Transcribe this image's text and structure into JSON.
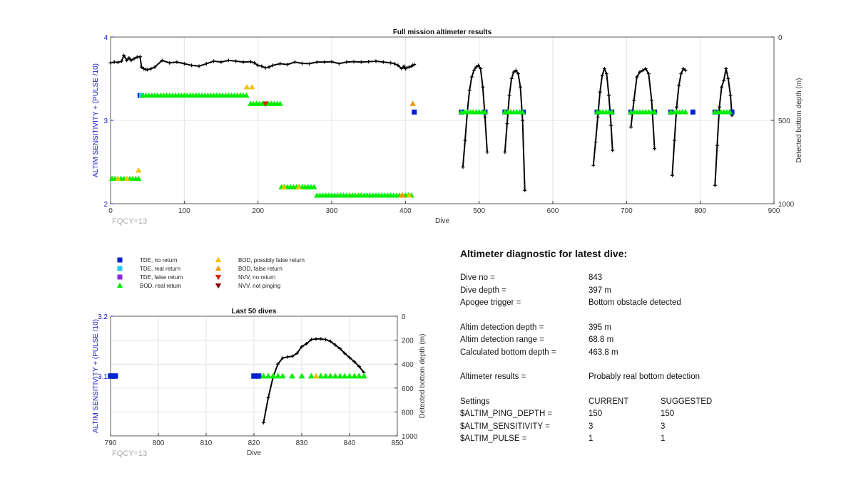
{
  "colors": {
    "axis_left": "#1a1acc",
    "tde_no_return": "#0022cc",
    "tde_real_return": "#22ccee",
    "tde_false_return": "#8a2be2",
    "bod_real_return": "#00ee00",
    "bod_possibly_false": "#f2c200",
    "bod_false_return": "#ee9900",
    "nvv_no_return": "#dd2200",
    "nvv_not_pinging": "#880000",
    "depth_line": "#000000"
  },
  "legend": [
    {
      "label": "TDE, no return",
      "marker": "square",
      "color": "#0022cc"
    },
    {
      "label": "TDE, real return",
      "marker": "square",
      "color": "#22ccee"
    },
    {
      "label": "TDE, false return",
      "marker": "square",
      "color": "#8a2be2"
    },
    {
      "label": "BOD, real return",
      "marker": "triangle-up",
      "color": "#00ee00"
    },
    {
      "label": "BOD, possibly false return",
      "marker": "triangle-up",
      "color": "#f2c200"
    },
    {
      "label": "BOD, false return",
      "marker": "triangle-up",
      "color": "#ee9900"
    },
    {
      "label": "NVV, no return",
      "marker": "triangle-down",
      "color": "#dd2200"
    },
    {
      "label": "NVV, not pinging",
      "marker": "triangle-down",
      "color": "#880000"
    }
  ],
  "chart_data": [
    {
      "type": "scatter",
      "title": "Full mission altimeter results",
      "xlabel": "Dive",
      "ylabel": "ALTIM SENSITIVITY + (PULSE /10)",
      "y2label": "Detected bottom depth (m)",
      "annotation": "FQCY=13",
      "xlim": [
        0,
        900
      ],
      "ylim": [
        2,
        4
      ],
      "y2lim": [
        1000,
        0
      ],
      "x_ticks": [
        0,
        100,
        200,
        300,
        400,
        500,
        600,
        700,
        800,
        900
      ],
      "y_ticks": [
        2,
        3,
        4
      ],
      "y2_ticks": [
        0,
        500,
        1000
      ],
      "grid": true,
      "series": [
        {
          "name": "TDE, no return",
          "color": "#0022cc",
          "marker": "square",
          "points": [
            [
              40,
              3.3
            ],
            [
              412,
              3.1
            ],
            [
              476,
              3.1
            ],
            [
              508,
              3.1
            ],
            [
              535,
              3.1
            ],
            [
              560,
              3.1
            ],
            [
              660,
              3.1
            ],
            [
              680,
              3.1
            ],
            [
              706,
              3.1
            ],
            [
              738,
              3.1
            ],
            [
              760,
              3.1
            ],
            [
              790,
              3.1
            ],
            [
              820,
              3.1
            ],
            [
              843,
              3.1
            ]
          ]
        },
        {
          "name": "TDE, real return",
          "color": "#22ccee",
          "marker": "square",
          "points": [
            [
              42,
              3.3
            ]
          ]
        },
        {
          "name": "BOD, real return",
          "color": "#00ee00",
          "marker": "triangle-up",
          "ranges": [
            [
              2,
              38,
              2.3
            ],
            [
              44,
              185,
              3.3
            ],
            [
              190,
              230,
              3.2
            ],
            [
              232,
              278,
              2.2
            ],
            [
              280,
              410,
              2.1
            ],
            [
              476,
              508,
              3.1
            ],
            [
              535,
              560,
              3.1
            ],
            [
              660,
              680,
              3.1
            ],
            [
              706,
              738,
              3.1
            ],
            [
              760,
              780,
              3.1
            ],
            [
              820,
              843,
              3.1
            ]
          ]
        },
        {
          "name": "BOD, possibly false return",
          "color": "#f2c200",
          "marker": "triangle-up",
          "points": [
            [
              10,
              2.3
            ],
            [
              22,
              2.3
            ],
            [
              38,
              2.4
            ],
            [
              185,
              3.4
            ],
            [
              192,
              3.4
            ],
            [
              235,
              2.2
            ],
            [
              255,
              2.2
            ],
            [
              395,
              2.1
            ],
            [
              405,
              2.1
            ]
          ]
        },
        {
          "name": "BOD, false return",
          "color": "#ee9900",
          "marker": "triangle-up",
          "points": [
            [
              410,
              3.2
            ],
            [
              396,
              2.1
            ]
          ]
        },
        {
          "name": "NVV, no return",
          "color": "#dd2200",
          "marker": "triangle-down",
          "points": [
            [
              210,
              3.2
            ]
          ]
        }
      ],
      "depth_series": [
        {
          "name": "Detected bottom depth",
          "axis": "right",
          "x": [
            0,
            5,
            10,
            15,
            18,
            22,
            25,
            28,
            32,
            36,
            40,
            42,
            45,
            48,
            50,
            55,
            60,
            70,
            80,
            90,
            100,
            110,
            120,
            130,
            140,
            150,
            160,
            170,
            180,
            190,
            195,
            200,
            205,
            210,
            215,
            220,
            230,
            240,
            250,
            260,
            270,
            280,
            290,
            300,
            310,
            320,
            330,
            340,
            350,
            360,
            370,
            380,
            385,
            390,
            395,
            398,
            400,
            402,
            405,
            408,
            410,
            412
          ],
          "y": [
            155,
            150,
            152,
            145,
            110,
            140,
            125,
            140,
            130,
            120,
            118,
            180,
            190,
            195,
            196,
            190,
            180,
            140,
            155,
            150,
            160,
            170,
            175,
            160,
            145,
            150,
            140,
            145,
            150,
            148,
            155,
            170,
            175,
            185,
            180,
            170,
            160,
            165,
            150,
            158,
            160,
            150,
            150,
            148,
            160,
            150,
            148,
            150,
            148,
            145,
            150,
            155,
            160,
            170,
            190,
            175,
            190,
            185,
            180,
            175,
            170,
            165
          ]
        },
        {
          "name": "Dive segment 1",
          "axis": "right",
          "x": [
            478,
            481,
            484,
            487,
            490,
            493,
            496,
            499,
            502,
            505,
            508,
            511
          ],
          "y": [
            780,
            620,
            450,
            320,
            240,
            200,
            180,
            170,
            190,
            300,
            480,
            690
          ]
        },
        {
          "name": "Dive segment 2",
          "axis": "right",
          "x": [
            535,
            538,
            541,
            544,
            547,
            550,
            553,
            556,
            559,
            562
          ],
          "y": [
            690,
            520,
            350,
            250,
            210,
            200,
            220,
            300,
            500,
            920
          ]
        },
        {
          "name": "Dive segment 3",
          "axis": "right",
          "x": [
            655,
            658,
            661,
            664,
            667,
            670,
            673,
            676,
            679,
            681
          ],
          "y": [
            770,
            630,
            480,
            330,
            230,
            190,
            220,
            350,
            530,
            680
          ]
        },
        {
          "name": "Dive segment 4",
          "axis": "right",
          "x": [
            706,
            710,
            714,
            718,
            722,
            726,
            730,
            734,
            738
          ],
          "y": [
            540,
            380,
            240,
            210,
            200,
            190,
            220,
            380,
            670
          ]
        },
        {
          "name": "Dive segment 5",
          "axis": "right",
          "x": [
            762,
            765,
            768,
            771,
            774,
            777,
            780
          ],
          "y": [
            830,
            620,
            420,
            290,
            220,
            190,
            200
          ]
        },
        {
          "name": "Dive segment 6",
          "axis": "right",
          "x": [
            820,
            823,
            826,
            829,
            832,
            835,
            838,
            841,
            843
          ],
          "y": [
            890,
            650,
            420,
            300,
            260,
            190,
            250,
            350,
            470
          ]
        }
      ]
    },
    {
      "type": "scatter",
      "title": "Last 50 dives",
      "xlabel": "Dive",
      "ylabel": "ALTIM SENSITIVITY + (PULSE /10)",
      "y2label": "Detected bottom depth (m)",
      "annotation": "FQCY=13",
      "xlim": [
        790,
        850
      ],
      "ylim": [
        3.0,
        3.2
      ],
      "y2lim": [
        1000,
        0
      ],
      "x_ticks": [
        790,
        800,
        810,
        820,
        830,
        840,
        850
      ],
      "y_ticks": [
        3.1,
        3.2
      ],
      "y2_ticks": [
        0,
        200,
        400,
        600,
        800,
        1000
      ],
      "grid": true,
      "series": [
        {
          "name": "TDE, no return",
          "color": "#0022cc",
          "marker": "square",
          "points": [
            [
              790,
              3.1
            ],
            [
              790.5,
              3.1
            ],
            [
              791,
              3.1
            ],
            [
              820,
              3.1
            ],
            [
              821,
              3.1
            ]
          ]
        },
        {
          "name": "BOD, real return",
          "color": "#00ee00",
          "marker": "triangle-up",
          "points": [
            [
              822,
              3.1
            ],
            [
              823,
              3.1
            ],
            [
              824,
              3.1
            ],
            [
              825,
              3.1
            ],
            [
              826,
              3.1
            ],
            [
              828,
              3.1
            ],
            [
              830,
              3.1
            ],
            [
              832,
              3.1
            ],
            [
              834,
              3.1
            ],
            [
              835,
              3.1
            ],
            [
              836,
              3.1
            ],
            [
              837,
              3.1
            ],
            [
              838,
              3.1
            ],
            [
              839,
              3.1
            ],
            [
              840,
              3.1
            ],
            [
              841,
              3.1
            ],
            [
              842,
              3.1
            ],
            [
              843,
              3.1
            ]
          ]
        },
        {
          "name": "BOD, possibly false return",
          "color": "#f2c200",
          "marker": "triangle-up",
          "points": [
            [
              833,
              3.1
            ]
          ]
        }
      ],
      "depth_series": [
        {
          "name": "Detected bottom depth",
          "axis": "right",
          "x": [
            822,
            823,
            824,
            825,
            826,
            827,
            828,
            829,
            830,
            831,
            832,
            833,
            834,
            835,
            836,
            837,
            838,
            839,
            840,
            841,
            842,
            843
          ],
          "y": [
            890,
            680,
            510,
            400,
            350,
            340,
            335,
            310,
            255,
            230,
            195,
            190,
            190,
            195,
            210,
            240,
            270,
            310,
            345,
            380,
            420,
            470
          ]
        }
      ]
    }
  ],
  "diagnostic": {
    "title": "Altimeter diagnostic for latest dive:",
    "dive_no_label": "Dive no =",
    "dive_no_value": "843",
    "dive_depth_label": "Dive depth =",
    "dive_depth_value": "397 m",
    "apogee_label": "Apogee trigger =",
    "apogee_value": "Bottom obstacle detected",
    "altim_depth_label": "Altim detection depth =",
    "altim_depth_value": "395 m",
    "altim_range_label": "Altim detection range =",
    "altim_range_value": "68.8 m",
    "calc_bottom_label": "Calculated bottom depth =",
    "calc_bottom_value": "463.8 m",
    "results_label": "Altimeter results =",
    "results_value": "Probably real bottom detection",
    "settings_label": "Settings",
    "current_label": "CURRENT",
    "suggested_label": "SUGGESTED",
    "ping_depth_label": "$ALTIM_PING_DEPTH =",
    "ping_depth_current": "150",
    "ping_depth_suggested": "150",
    "sensitivity_label": "$ALTIM_SENSITIVITY =",
    "sensitivity_current": "3",
    "sensitivity_suggested": "3",
    "pulse_label": "$ALTIM_PULSE =",
    "pulse_current": "1",
    "pulse_suggested": "1"
  }
}
